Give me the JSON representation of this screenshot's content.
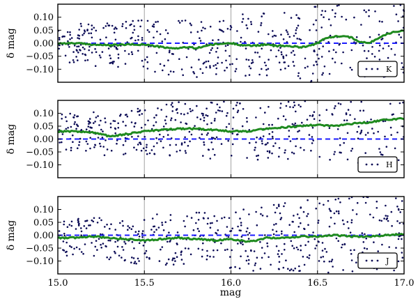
{
  "chart_data": {
    "type": "scatter",
    "xlabel": "mag",
    "xlim": [
      15.0,
      17.0
    ],
    "x_ticks": [
      "15.0",
      "15.5",
      "16.0",
      "16.5",
      "17.0"
    ],
    "x_tick_values": [
      15.0,
      15.5,
      16.0,
      16.5,
      17.0
    ],
    "colors": {
      "points": "#0b0b55",
      "running_median": "#1f8a1f",
      "zero_line": "#1a1aff",
      "grid": "#b0b0b0"
    },
    "panels": [
      {
        "ylabel": "δ mag",
        "legend_label": "K",
        "legend_position": "lower-right",
        "ylim": [
          -0.15,
          0.15
        ],
        "y_ticks": [
          "0.10",
          "0.05",
          "0.00",
          "−0.05",
          "−0.10"
        ],
        "y_tick_values": [
          0.1,
          0.05,
          0.0,
          -0.05,
          -0.1
        ],
        "zero_line": 0.0,
        "trend_x": [
          15.0,
          15.1,
          15.2,
          15.3,
          15.4,
          15.5,
          15.55,
          15.6,
          15.65,
          15.7,
          15.75,
          15.8,
          15.85,
          15.9,
          15.95,
          16.0,
          16.05,
          16.1,
          16.15,
          16.2,
          16.25,
          16.3,
          16.35,
          16.4,
          16.45,
          16.5,
          16.55,
          16.6,
          16.65,
          16.7,
          16.75,
          16.8,
          16.85,
          16.9,
          16.95,
          17.0
        ],
        "trend_y": [
          0.0,
          0.0,
          -0.005,
          -0.008,
          -0.005,
          -0.005,
          -0.01,
          -0.015,
          -0.02,
          -0.018,
          -0.015,
          -0.02,
          -0.01,
          -0.005,
          -0.002,
          0.0,
          -0.005,
          -0.01,
          -0.008,
          -0.005,
          -0.01,
          -0.01,
          -0.012,
          -0.015,
          -0.01,
          0.0,
          0.02,
          0.025,
          0.03,
          0.02,
          0.005,
          0.0,
          0.02,
          0.035,
          0.045,
          0.048
        ]
      },
      {
        "ylabel": "δ mag",
        "legend_label": "H",
        "legend_position": "lower-right",
        "ylim": [
          -0.15,
          0.15
        ],
        "y_ticks": [
          "0.10",
          "0.05",
          "0.00",
          "−0.05",
          "−0.10"
        ],
        "y_tick_values": [
          0.1,
          0.05,
          0.0,
          -0.05,
          -0.1
        ],
        "zero_line": 0.0,
        "trend_x": [
          15.0,
          15.1,
          15.2,
          15.25,
          15.3,
          15.4,
          15.5,
          15.6,
          15.7,
          15.8,
          15.9,
          16.0,
          16.1,
          16.2,
          16.3,
          16.4,
          16.5,
          16.6,
          16.7,
          16.8,
          16.9,
          17.0
        ],
        "trend_y": [
          0.03,
          0.03,
          0.025,
          0.02,
          0.01,
          0.02,
          0.03,
          0.035,
          0.04,
          0.04,
          0.035,
          0.03,
          0.03,
          0.04,
          0.045,
          0.05,
          0.055,
          0.05,
          0.06,
          0.065,
          0.075,
          0.08
        ]
      },
      {
        "ylabel": "δ mag",
        "legend_label": "J",
        "legend_position": "lower-right",
        "ylim": [
          -0.15,
          0.15
        ],
        "y_ticks": [
          "0.10",
          "0.05",
          "0.00",
          "−0.05",
          "−0.10"
        ],
        "y_tick_values": [
          0.1,
          0.05,
          0.0,
          -0.05,
          -0.1
        ],
        "zero_line": 0.0,
        "trend_x": [
          15.0,
          15.1,
          15.2,
          15.3,
          15.4,
          15.5,
          15.6,
          15.7,
          15.8,
          15.9,
          16.0,
          16.05,
          16.1,
          16.15,
          16.2,
          16.3,
          16.4,
          16.5,
          16.6,
          16.7,
          16.8,
          16.9,
          17.0
        ],
        "trend_y": [
          -0.01,
          -0.01,
          -0.005,
          -0.01,
          -0.015,
          -0.02,
          -0.015,
          -0.01,
          -0.015,
          -0.02,
          -0.015,
          -0.02,
          -0.025,
          -0.02,
          -0.01,
          -0.01,
          -0.005,
          -0.005,
          0.0,
          -0.005,
          -0.005,
          0.0,
          0.005
        ]
      }
    ]
  }
}
